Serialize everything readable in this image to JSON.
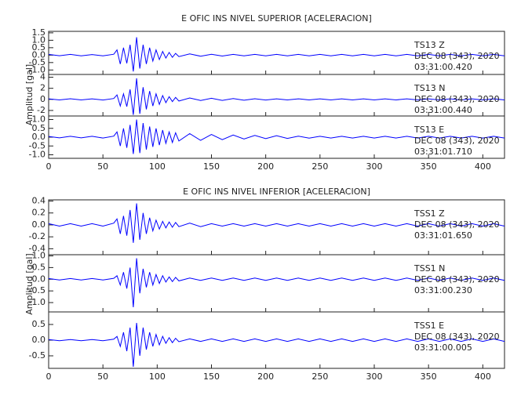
{
  "chart_data": [
    {
      "type": "line",
      "title": "E OFIC INS NIVEL SUPERIOR [ACELERACION]",
      "ylabel": "Amplitud [gal]",
      "color": "#0000ff",
      "xlim": [
        0,
        420
      ],
      "xticks": [
        0,
        50,
        100,
        150,
        200,
        250,
        300,
        350,
        400
      ],
      "x": [
        0,
        10,
        20,
        30,
        40,
        50,
        60,
        63,
        66,
        69,
        72,
        75,
        78,
        81,
        84,
        87,
        90,
        93,
        96,
        99,
        102,
        105,
        108,
        111,
        114,
        117,
        120,
        130,
        140,
        150,
        160,
        170,
        180,
        190,
        200,
        210,
        220,
        230,
        240,
        250,
        260,
        270,
        280,
        290,
        300,
        310,
        320,
        330,
        340,
        350,
        360,
        370,
        380,
        390,
        400,
        410,
        420
      ],
      "panels": [
        {
          "station": "TS13   Z",
          "date": "DEC 08 (343), 2020",
          "time": "03:31:00.420",
          "ylim": [
            -1.3,
            1.6
          ],
          "yticks": [
            1.5,
            {
              "value": 1.0,
              "label": "1.0"
            },
            0.5,
            {
              "value": 0,
              "label": "0.0"
            },
            -0.5,
            {
              "value": -1.0,
              "label": "-1.0"
            }
          ],
          "values": [
            0.05,
            -0.04,
            0.05,
            -0.05,
            0.04,
            -0.05,
            0.06,
            0.35,
            -0.6,
            0.5,
            -0.55,
            0.7,
            -1.1,
            1.2,
            -0.9,
            0.7,
            -0.6,
            0.5,
            -0.4,
            0.35,
            -0.3,
            0.25,
            -0.2,
            0.18,
            -0.15,
            0.12,
            -0.1,
            0.08,
            -0.07,
            0.06,
            -0.06,
            0.05,
            -0.05,
            0.05,
            -0.05,
            0.05,
            -0.05,
            0.05,
            -0.05,
            0.05,
            -0.05,
            0.05,
            -0.05,
            0.05,
            -0.05,
            0.05,
            -0.05,
            0.05,
            -0.05,
            0.05,
            -0.05,
            0.05,
            -0.05,
            0.05,
            -0.05,
            0.05,
            -0.05
          ]
        },
        {
          "station": "TS13   N",
          "date": "DEC 08 (343), 2020",
          "time": "03:31:00.440",
          "ylim": [
            -3,
            4.5
          ],
          "yticks": [
            4,
            2,
            0,
            -2
          ],
          "values": [
            0.1,
            -0.1,
            0.12,
            -0.1,
            0.1,
            -0.12,
            0.15,
            0.8,
            -1.2,
            1.0,
            -1.3,
            1.8,
            -2.8,
            3.8,
            -2.6,
            2.2,
            -1.8,
            1.5,
            -1.2,
            1.0,
            -0.9,
            0.7,
            -0.6,
            0.5,
            -0.4,
            0.35,
            -0.3,
            0.25,
            -0.2,
            0.2,
            -0.18,
            0.15,
            -0.15,
            0.12,
            -0.12,
            0.1,
            -0.1,
            0.1,
            -0.1,
            0.1,
            -0.1,
            0.1,
            -0.1,
            0.1,
            -0.1,
            0.1,
            -0.1,
            0.1,
            -0.1,
            0.1,
            -0.1,
            0.1,
            -0.1,
            0.1,
            -0.1,
            0.1,
            -0.1
          ]
        },
        {
          "station": "TS13   E",
          "date": "DEC 08 (343), 2020",
          "time": "03:31:01.710",
          "ylim": [
            -1.2,
            1.2
          ],
          "yticks": [
            {
              "value": 1.0,
              "label": "1.0"
            },
            0.5,
            {
              "value": 0,
              "label": "0.0"
            },
            -0.5,
            {
              "value": -1.0,
              "label": "-1.0"
            }
          ],
          "values": [
            0.04,
            -0.04,
            0.05,
            -0.04,
            0.05,
            -0.05,
            0.06,
            0.3,
            -0.5,
            0.5,
            -0.6,
            0.7,
            -0.95,
            1.0,
            -0.9,
            0.8,
            -0.7,
            0.6,
            -0.55,
            0.5,
            -0.45,
            0.4,
            -0.35,
            0.3,
            -0.3,
            0.25,
            -0.22,
            0.2,
            -0.18,
            0.15,
            -0.14,
            0.12,
            -0.1,
            0.1,
            -0.08,
            0.08,
            -0.07,
            0.06,
            -0.06,
            0.05,
            -0.05,
            0.05,
            -0.05,
            0.05,
            -0.05,
            0.05,
            -0.05,
            0.05,
            -0.05,
            0.05,
            -0.05,
            0.05,
            -0.05,
            0.05,
            -0.05,
            0.05,
            -0.05
          ]
        }
      ]
    },
    {
      "type": "line",
      "title": "E OFIC INS NIVEL INFERIOR [ACELERACION]",
      "ylabel": "Amplitud [gal]",
      "color": "#0000ff",
      "xlim": [
        0,
        420
      ],
      "xticks": [
        0,
        50,
        100,
        150,
        200,
        250,
        300,
        350,
        400
      ],
      "x": [
        0,
        10,
        20,
        30,
        40,
        50,
        60,
        63,
        66,
        69,
        72,
        75,
        78,
        81,
        84,
        87,
        90,
        93,
        96,
        99,
        102,
        105,
        108,
        111,
        114,
        117,
        120,
        130,
        140,
        150,
        160,
        170,
        180,
        190,
        200,
        210,
        220,
        230,
        240,
        250,
        260,
        270,
        280,
        290,
        300,
        310,
        320,
        330,
        340,
        350,
        360,
        370,
        380,
        390,
        400,
        410,
        420
      ],
      "panels": [
        {
          "station": "TSS1   Z",
          "date": "DEC 08 (343), 2020",
          "time": "03:31:01.650",
          "ylim": [
            -0.5,
            0.42
          ],
          "yticks": [
            0.4,
            0.2,
            {
              "value": 0,
              "label": "0.0"
            },
            -0.2,
            -0.4
          ],
          "values": [
            0.02,
            -0.02,
            0.02,
            -0.02,
            0.02,
            -0.02,
            0.03,
            0.1,
            -0.15,
            0.15,
            -0.18,
            0.25,
            -0.3,
            0.36,
            -0.25,
            0.2,
            -0.15,
            0.12,
            -0.1,
            0.08,
            -0.07,
            0.06,
            -0.05,
            0.05,
            -0.04,
            0.04,
            -0.03,
            0.03,
            -0.03,
            0.02,
            -0.02,
            0.02,
            -0.02,
            0.02,
            -0.02,
            0.02,
            -0.02,
            0.02,
            -0.02,
            0.02,
            -0.02,
            0.02,
            -0.02,
            0.02,
            -0.02,
            0.02,
            -0.02,
            0.02,
            -0.02,
            0.02,
            -0.02,
            0.02,
            -0.02,
            0.02,
            -0.02,
            0.02,
            -0.02
          ]
        },
        {
          "station": "TSS1   N",
          "date": "DEC 08 (343), 2020",
          "time": "03:31:00.230",
          "ylim": [
            -1.4,
            1.05
          ],
          "yticks": [
            {
              "value": 1.0,
              "label": "1.0"
            },
            0.5,
            {
              "value": 0,
              "label": "0.0"
            },
            -0.5,
            {
              "value": -1.0,
              "label": "-1.0"
            }
          ],
          "values": [
            0.03,
            -0.03,
            0.03,
            -0.03,
            0.03,
            -0.03,
            0.04,
            0.15,
            -0.25,
            0.3,
            -0.4,
            0.5,
            -1.2,
            0.9,
            -0.6,
            0.45,
            -0.35,
            0.3,
            -0.25,
            0.2,
            -0.18,
            0.15,
            -0.12,
            0.1,
            -0.1,
            0.08,
            -0.07,
            0.05,
            -0.05,
            0.05,
            -0.05,
            0.05,
            -0.05,
            0.05,
            -0.05,
            0.05,
            -0.05,
            0.05,
            -0.05,
            0.05,
            -0.05,
            0.05,
            -0.05,
            0.05,
            -0.05,
            0.05,
            -0.05,
            0.05,
            -0.05,
            0.05,
            -0.05,
            0.05,
            -0.05,
            0.05,
            -0.05,
            0.05,
            -0.05
          ]
        },
        {
          "station": "TSS1   E",
          "date": "DEC 08 (343), 2020",
          "time": "03:31:00.005",
          "ylim": [
            -0.9,
            0.9
          ],
          "yticks": [
            0.5,
            {
              "value": 0,
              "label": "0.0"
            },
            -0.5
          ],
          "values": [
            0.02,
            -0.02,
            0.02,
            -0.02,
            0.02,
            -0.02,
            0.03,
            0.12,
            -0.2,
            0.25,
            -0.35,
            0.4,
            -0.85,
            0.55,
            -0.5,
            0.4,
            -0.3,
            0.25,
            -0.2,
            0.18,
            -0.15,
            0.12,
            -0.1,
            0.08,
            -0.08,
            0.06,
            -0.05,
            0.04,
            -0.04,
            0.04,
            -0.04,
            0.04,
            -0.04,
            0.04,
            -0.04,
            0.04,
            -0.04,
            0.04,
            -0.04,
            0.04,
            -0.04,
            0.04,
            -0.04,
            0.04,
            -0.04,
            0.04,
            -0.04,
            0.04,
            -0.04,
            0.04,
            -0.04,
            0.04,
            -0.04,
            0.04,
            -0.04,
            0.04,
            -0.04
          ]
        }
      ]
    }
  ]
}
